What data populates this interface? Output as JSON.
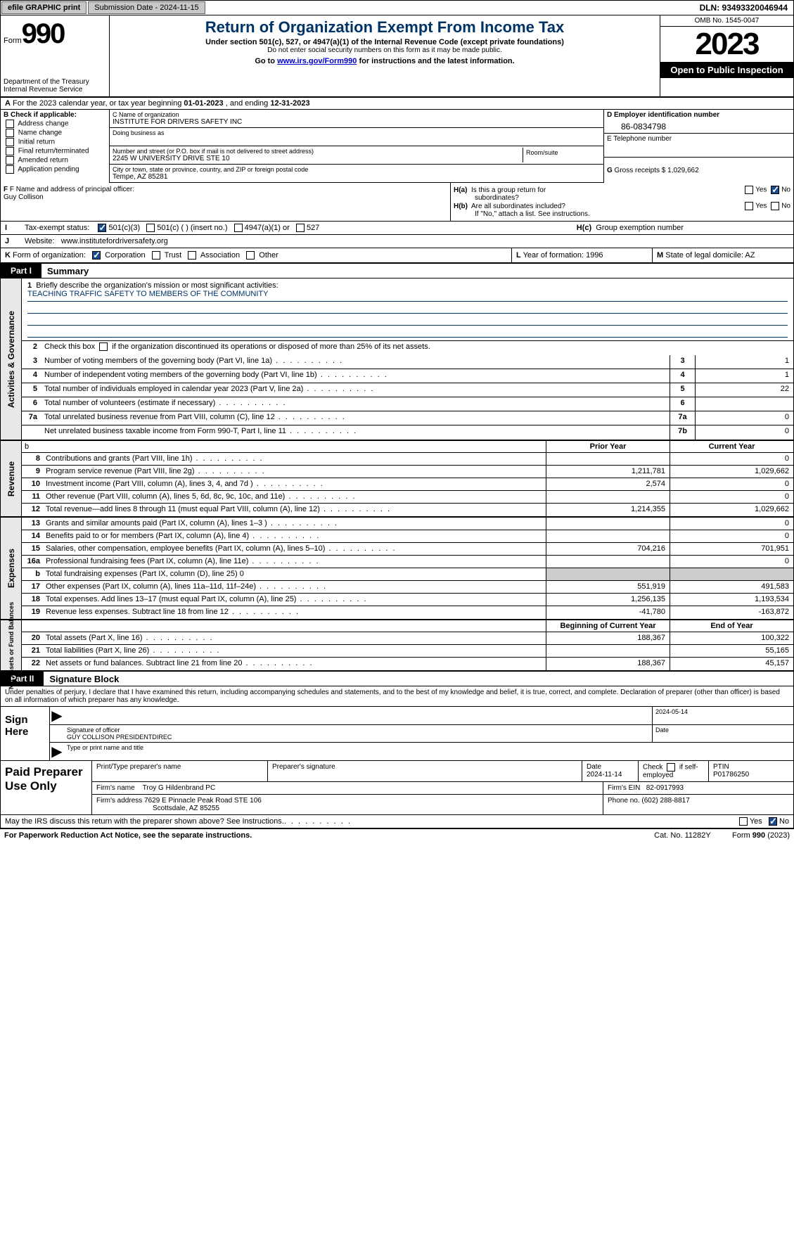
{
  "topbar": {
    "efile": "efile GRAPHIC print",
    "submission": "Submission Date - 2024-11-15",
    "dln": "DLN: 93493320046944"
  },
  "header": {
    "form_label": "Form",
    "form_number": "990",
    "dept": "Department of the Treasury\nInternal Revenue Service",
    "title": "Return of Organization Exempt From Income Tax",
    "sub1": "Under section 501(c), 527, or 4947(a)(1) of the Internal Revenue Code (except private foundations)",
    "sub2": "Do not enter social security numbers on this form as it may be made public.",
    "goto_pre": "Go to ",
    "goto_link": "www.irs.gov/Form990",
    "goto_post": " for instructions and the latest information.",
    "omb": "OMB No. 1545-0047",
    "year": "2023",
    "public": "Open to Public Inspection"
  },
  "sectionA": {
    "text_pre": "A For the 2023 calendar year, or tax year beginning ",
    "begin": "01-01-2023",
    "text_mid": " , and ending ",
    "end": "12-31-2023"
  },
  "boxB": {
    "label": "B Check if applicable:",
    "opts": [
      "Address change",
      "Name change",
      "Initial return",
      "Final return/terminated",
      "Amended return",
      "Application pending"
    ]
  },
  "boxC": {
    "name_label": "C Name of organization",
    "name": "INSTITUTE FOR DRIVERS SAFETY INC",
    "dba_label": "Doing business as",
    "addr_label": "Number and street (or P.O. box if mail is not delivered to street address)",
    "addr": "2245 W UNIVERSITY DRIVE STE 10",
    "room_label": "Room/suite",
    "city_label": "City or town, state or province, country, and ZIP or foreign postal code",
    "city": "Tempe, AZ  85281"
  },
  "boxD": {
    "label": "D Employer identification number",
    "value": "86-0834798"
  },
  "boxE": {
    "label": "E Telephone number"
  },
  "boxG": {
    "label": "G Gross receipts $",
    "value": "1,029,662"
  },
  "boxF": {
    "label": "F Name and address of principal officer:",
    "name": "Guy Collison"
  },
  "boxH": {
    "a": "H(a)  Is this a group return for subordinates?",
    "b": "H(b)  Are all subordinates included?",
    "b_note": "If \"No,\" attach a list. See instructions.",
    "c": "H(c)  Group exemption number",
    "yes": "Yes",
    "no": "No"
  },
  "boxI": {
    "label": "I  Tax-exempt status:",
    "opts": [
      "501(c)(3)",
      "501(c) (  ) (insert no.)",
      "4947(a)(1) or",
      "527"
    ]
  },
  "boxJ": {
    "label": "J  Website:",
    "value": "www.institutefordriversafety.org"
  },
  "boxK": {
    "label": "K Form of organization:",
    "opts": [
      "Corporation",
      "Trust",
      "Association",
      "Other"
    ]
  },
  "boxL": {
    "label": "L Year of formation:",
    "value": "1996"
  },
  "boxM": {
    "label": "M State of legal domicile:",
    "value": "AZ"
  },
  "part1": {
    "tag": "Part I",
    "title": "Summary"
  },
  "summary": {
    "gov_label": "Activities & Governance",
    "line1_label": "Briefly describe the organization's mission or most significant activities:",
    "line1_value": "TEACHING TRAFFIC SAFETY TO MEMBERS OF THE COMMUNITY",
    "line2": "Check this box       if the organization discontinued its operations or disposed of more than 25% of its net assets.",
    "rows_gov": [
      {
        "n": "3",
        "t": "Number of voting members of the governing body (Part VI, line 1a)",
        "b": "3",
        "v": "1"
      },
      {
        "n": "4",
        "t": "Number of independent voting members of the governing body (Part VI, line 1b)",
        "b": "4",
        "v": "1"
      },
      {
        "n": "5",
        "t": "Total number of individuals employed in calendar year 2023 (Part V, line 2a)",
        "b": "5",
        "v": "22"
      },
      {
        "n": "6",
        "t": "Total number of volunteers (estimate if necessary)",
        "b": "6",
        "v": ""
      },
      {
        "n": "7a",
        "t": "Total unrelated business revenue from Part VIII, column (C), line 12",
        "b": "7a",
        "v": "0"
      },
      {
        "n": "",
        "t": "Net unrelated business taxable income from Form 990-T, Part I, line 11",
        "b": "7b",
        "v": "0"
      }
    ],
    "rev_label": "Revenue",
    "col_prior": "Prior Year",
    "col_current": "Current Year",
    "rows_rev": [
      {
        "n": "8",
        "t": "Contributions and grants (Part VIII, line 1h)",
        "p": "",
        "c": "0"
      },
      {
        "n": "9",
        "t": "Program service revenue (Part VIII, line 2g)",
        "p": "1,211,781",
        "c": "1,029,662"
      },
      {
        "n": "10",
        "t": "Investment income (Part VIII, column (A), lines 3, 4, and 7d )",
        "p": "2,574",
        "c": "0"
      },
      {
        "n": "11",
        "t": "Other revenue (Part VIII, column (A), lines 5, 6d, 8c, 9c, 10c, and 11e)",
        "p": "",
        "c": "0"
      },
      {
        "n": "12",
        "t": "Total revenue—add lines 8 through 11 (must equal Part VIII, column (A), line 12)",
        "p": "1,214,355",
        "c": "1,029,662"
      }
    ],
    "exp_label": "Expenses",
    "rows_exp": [
      {
        "n": "13",
        "t": "Grants and similar amounts paid (Part IX, column (A), lines 1–3 )",
        "p": "",
        "c": "0"
      },
      {
        "n": "14",
        "t": "Benefits paid to or for members (Part IX, column (A), line 4)",
        "p": "",
        "c": "0"
      },
      {
        "n": "15",
        "t": "Salaries, other compensation, employee benefits (Part IX, column (A), lines 5–10)",
        "p": "704,216",
        "c": "701,951"
      },
      {
        "n": "16a",
        "t": "Professional fundraising fees (Part IX, column (A), line 11e)",
        "p": "",
        "c": "0"
      },
      {
        "n": "b",
        "t": "Total fundraising expenses (Part IX, column (D), line 25) 0",
        "p": "SHADE",
        "c": "SHADE"
      },
      {
        "n": "17",
        "t": "Other expenses (Part IX, column (A), lines 11a–11d, 11f–24e)",
        "p": "551,919",
        "c": "491,583"
      },
      {
        "n": "18",
        "t": "Total expenses. Add lines 13–17 (must equal Part IX, column (A), line 25)",
        "p": "1,256,135",
        "c": "1,193,534"
      },
      {
        "n": "19",
        "t": "Revenue less expenses. Subtract line 18 from line 12",
        "p": "-41,780",
        "c": "-163,872"
      }
    ],
    "net_label": "Net Assets or Fund Balances",
    "col_begin": "Beginning of Current Year",
    "col_end": "End of Year",
    "rows_net": [
      {
        "n": "20",
        "t": "Total assets (Part X, line 16)",
        "p": "188,367",
        "c": "100,322"
      },
      {
        "n": "21",
        "t": "Total liabilities (Part X, line 26)",
        "p": "",
        "c": "55,165"
      },
      {
        "n": "22",
        "t": "Net assets or fund balances. Subtract line 21 from line 20",
        "p": "188,367",
        "c": "45,157"
      }
    ]
  },
  "part2": {
    "tag": "Part II",
    "title": "Signature Block"
  },
  "sig": {
    "intro": "Under penalties of perjury, I declare that I have examined this return, including accompanying schedules and statements, and to the best of my knowledge and belief, it is true, correct, and complete. Declaration of preparer (other than officer) is based on all information of which preparer has any knowledge.",
    "sign_here": "Sign Here",
    "date": "2024-05-14",
    "sig_label": "Signature of officer",
    "officer": "GUY COLLISON  PRESIDENTDIREC",
    "type_label": "Type or print name and title",
    "date_label": "Date"
  },
  "prep": {
    "label": "Paid Preparer Use Only",
    "h1": "Print/Type preparer's name",
    "h2": "Preparer's signature",
    "h3": "Date",
    "date": "2024-11-14",
    "h4_pre": "Check",
    "h4_post": "if self-employed",
    "h5": "PTIN",
    "ptin": "P01786250",
    "firm_label": "Firm's name",
    "firm": "Troy G Hildenbrand PC",
    "ein_label": "Firm's EIN",
    "ein": "82-0917993",
    "addr_label": "Firm's address",
    "addr1": "7629 E Pinnacle Peak Road STE 106",
    "addr2": "Scottsdale, AZ  85255",
    "phone_label": "Phone no.",
    "phone": "(602) 288-8817"
  },
  "footer": {
    "discuss": "May the IRS discuss this return with the preparer shown above? See Instructions.",
    "yes": "Yes",
    "no": "No",
    "paperwork": "For Paperwork Reduction Act Notice, see the separate instructions.",
    "cat": "Cat. No. 11282Y",
    "form": "Form 990 (2023)"
  }
}
